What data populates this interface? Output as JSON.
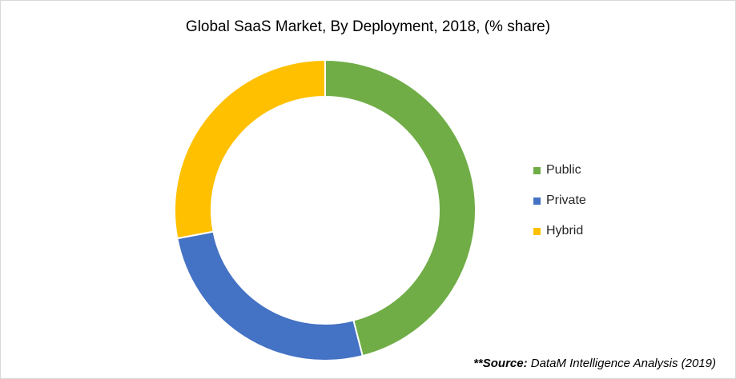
{
  "chart_data": {
    "type": "pie",
    "donut": true,
    "title": "Global SaaS Market, By Deployment, 2018, (% share)",
    "categories": [
      "Public",
      "Private",
      "Hybrid"
    ],
    "values": [
      46,
      26,
      28
    ],
    "colors": [
      "#70ad47",
      "#4472c4",
      "#ffc000"
    ],
    "legend_position": "right"
  },
  "source": {
    "label": "**Source:",
    "text": " DataM Intelligence Analysis (2019)"
  }
}
